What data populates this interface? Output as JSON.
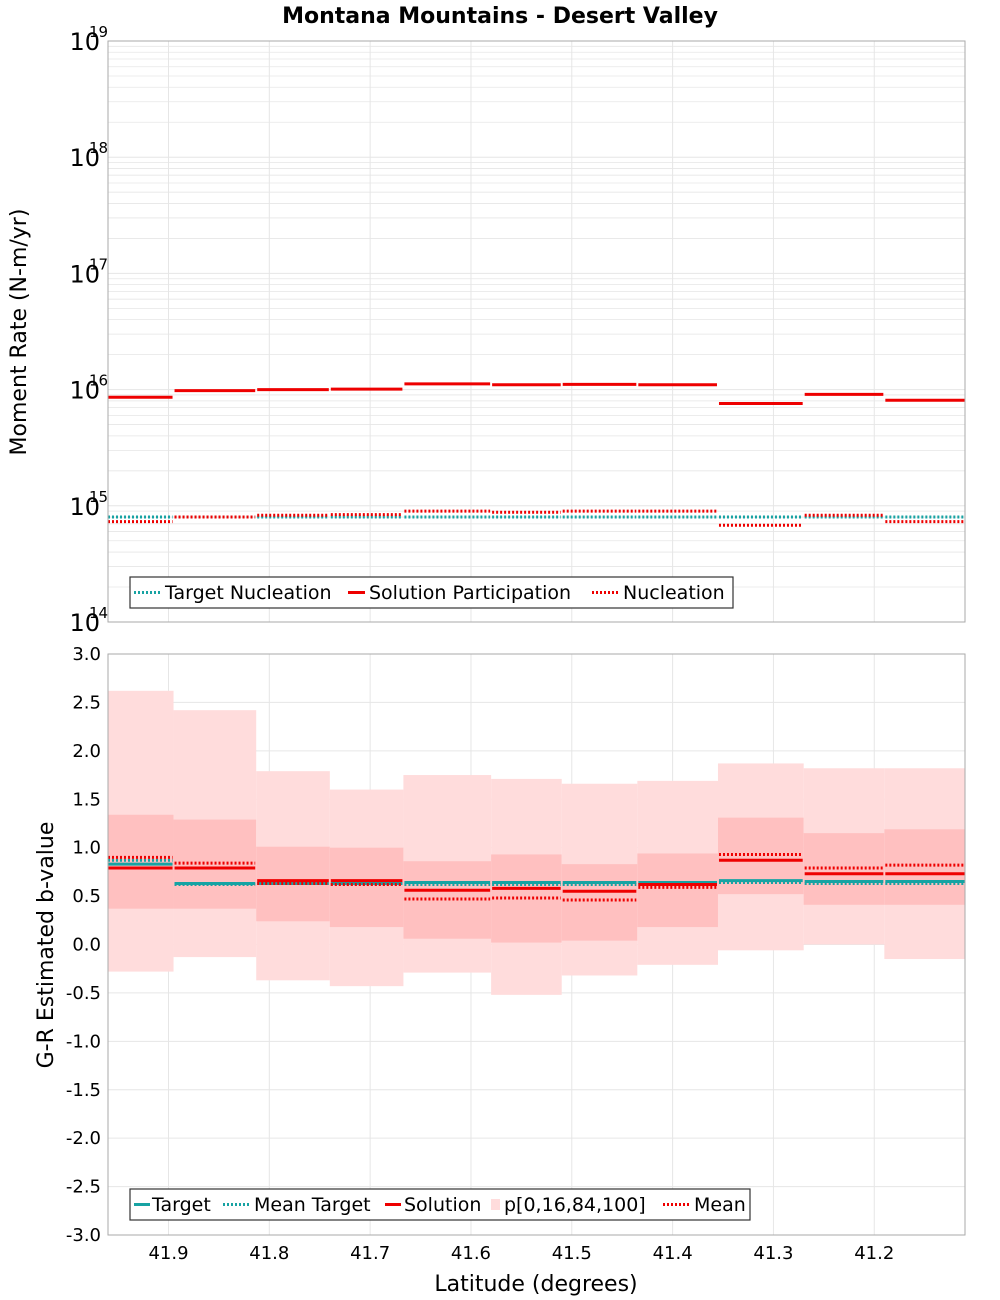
{
  "title": "Montana Mountains - Desert Valley",
  "xlabel": "Latitude (degrees)",
  "colors": {
    "target": "#17a3a3",
    "solution": "#ee0000",
    "band_outer": "#ffdcdc",
    "band_inner": "#ffc0c0",
    "grid": "#e6e6e6",
    "frame": "#aaaaaa"
  },
  "x_ticks": [
    "41.9",
    "41.8",
    "41.7",
    "41.6",
    "41.5",
    "41.4",
    "41.3",
    "41.2"
  ],
  "chart_data": [
    {
      "type": "line",
      "panel": "top",
      "ylabel": "Moment Rate (N-m/yr)",
      "yscale": "log",
      "ylim": [
        100000000000000.0,
        1e+19
      ],
      "xlim": [
        41.96,
        41.11
      ],
      "x_reversed": true,
      "grid": true,
      "legend_position": "lower-left",
      "y_tick_exponents": [
        "14",
        "15",
        "16",
        "17",
        "18",
        "19"
      ],
      "bin_edges": [
        41.96,
        41.895,
        41.813,
        41.74,
        41.667,
        41.58,
        41.51,
        41.435,
        41.355,
        41.27,
        41.19,
        41.11
      ],
      "series": [
        {
          "name": "Target Nucleation",
          "style": "dotted",
          "color": "#17a3a3",
          "values": [
            800000000000000.0,
            800000000000000.0,
            800000000000000.0,
            800000000000000.0,
            800000000000000.0,
            800000000000000.0,
            800000000000000.0,
            800000000000000.0,
            800000000000000.0,
            800000000000000.0,
            800000000000000.0
          ]
        },
        {
          "name": "Solution Participation",
          "style": "solid",
          "color": "#ee0000",
          "values": [
            8600000000000000.0,
            9800000000000000.0,
            1e+16,
            1.01e+16,
            1.12e+16,
            1.1e+16,
            1.11e+16,
            1.1e+16,
            7600000000000000.0,
            9100000000000000.0,
            8100000000000000.0
          ]
        },
        {
          "name": "Nucleation",
          "style": "dotted",
          "color": "#ee0000",
          "values": [
            730000000000000.0,
            800000000000000.0,
            830000000000000.0,
            840000000000000.0,
            900000000000000.0,
            880000000000000.0,
            900000000000000.0,
            900000000000000.0,
            680000000000000.0,
            830000000000000.0,
            730000000000000.0
          ]
        }
      ]
    },
    {
      "type": "line",
      "panel": "bottom",
      "ylabel": "G-R Estimated b-value",
      "yscale": "linear",
      "ylim": [
        -3.0,
        3.0
      ],
      "xlim": [
        41.96,
        41.11
      ],
      "x_reversed": true,
      "grid": true,
      "legend_position": "lower-left",
      "y_ticks": [
        "-3.0",
        "-2.5",
        "-2.0",
        "-1.5",
        "-1.0",
        "-0.5",
        "0.0",
        "0.5",
        "1.0",
        "1.5",
        "2.0",
        "2.5",
        "3.0"
      ],
      "bin_edges": [
        41.96,
        41.895,
        41.813,
        41.74,
        41.667,
        41.58,
        41.51,
        41.435,
        41.355,
        41.27,
        41.19,
        41.11
      ],
      "series": [
        {
          "name": "Target",
          "style": "solid",
          "color": "#17a3a3",
          "values": [
            0.83,
            0.63,
            0.63,
            0.63,
            0.64,
            0.64,
            0.64,
            0.64,
            0.66,
            0.65,
            0.65
          ]
        },
        {
          "name": "Mean Target",
          "style": "dotted",
          "color": "#17a3a3",
          "values": [
            0.87,
            0.62,
            0.63,
            0.62,
            0.62,
            0.62,
            0.62,
            0.62,
            0.64,
            0.63,
            0.63
          ]
        },
        {
          "name": "Solution",
          "style": "solid",
          "color": "#ee0000",
          "values": [
            0.79,
            0.79,
            0.66,
            0.66,
            0.56,
            0.58,
            0.55,
            0.62,
            0.87,
            0.73,
            0.73
          ]
        },
        {
          "name": "Mean",
          "style": "dotted",
          "color": "#ee0000",
          "values": [
            0.9,
            0.84,
            0.63,
            0.62,
            0.47,
            0.48,
            0.46,
            0.59,
            0.93,
            0.79,
            0.82
          ]
        }
      ],
      "bands": {
        "name": "p[0,16,84,100]",
        "p0": [
          -0.28,
          -0.13,
          -0.37,
          -0.43,
          -0.29,
          -0.52,
          -0.32,
          -0.21,
          -0.06,
          0.0,
          -0.15
        ],
        "p16": [
          0.37,
          0.37,
          0.24,
          0.18,
          0.06,
          0.02,
          0.04,
          0.18,
          0.52,
          0.41,
          0.41
        ],
        "p84": [
          1.34,
          1.29,
          1.01,
          1.0,
          0.86,
          0.93,
          0.83,
          0.94,
          1.31,
          1.15,
          1.19
        ],
        "p100": [
          2.62,
          2.42,
          1.79,
          1.6,
          1.75,
          1.71,
          1.66,
          1.69,
          1.87,
          1.82,
          1.82
        ]
      }
    }
  ]
}
